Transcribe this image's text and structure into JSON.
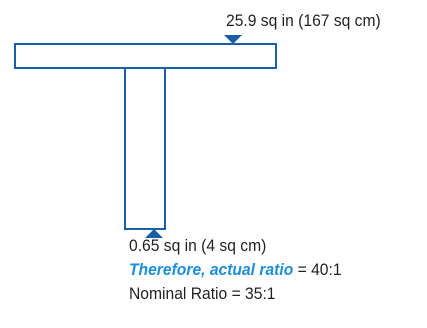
{
  "top_area_label": "25.9 sq in (167 sq cm)",
  "bottom_area_label": "0.65 sq in (4 sq cm)",
  "actual_ratio": {
    "emphasis": "Therefore, actual ratio",
    "value": " = 40:1"
  },
  "nominal_ratio": "Nominal Ratio = 35:1",
  "colors": {
    "outline": "#1a5ea8",
    "marker": "#1a5ea8",
    "emphasis": "#1d8fd6",
    "text": "#231f20"
  }
}
